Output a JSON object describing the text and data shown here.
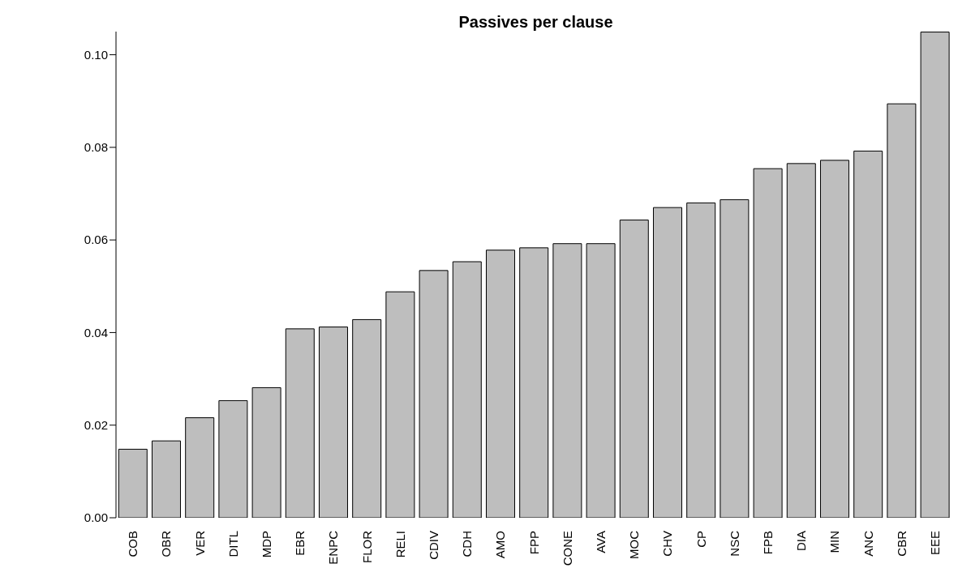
{
  "chart_data": {
    "type": "bar",
    "title": "Passives per clause",
    "categories": [
      "COB",
      "OBR",
      "VER",
      "DITL",
      "MDP",
      "EBR",
      "ENPC",
      "FLOR",
      "RELI",
      "CDIV",
      "CDH",
      "AMO",
      "FPP",
      "CONE",
      "AVA",
      "MOC",
      "CHV",
      "CP",
      "NSC",
      "FPB",
      "DIA",
      "MIN",
      "ANC",
      "CBR",
      "EEE"
    ],
    "values": [
      0.0148,
      0.0166,
      0.0216,
      0.0253,
      0.0281,
      0.0408,
      0.0412,
      0.0428,
      0.0488,
      0.0534,
      0.0553,
      0.0578,
      0.0583,
      0.0592,
      0.0592,
      0.0643,
      0.067,
      0.068,
      0.0687,
      0.0754,
      0.0765,
      0.0772,
      0.0792,
      0.0894,
      0.1049
    ],
    "color": "#bebebe",
    "ylim": [
      0,
      0.105
    ],
    "yticks": [
      {
        "value": 0,
        "label": "0.00"
      },
      {
        "value": 0.02,
        "label": "0.02"
      },
      {
        "value": 0.04,
        "label": "0.04"
      },
      {
        "value": 0.06,
        "label": "0.06"
      },
      {
        "value": 0.08,
        "label": "0.08"
      },
      {
        "value": 0.1,
        "label": "0.10"
      }
    ],
    "grid": false
  }
}
